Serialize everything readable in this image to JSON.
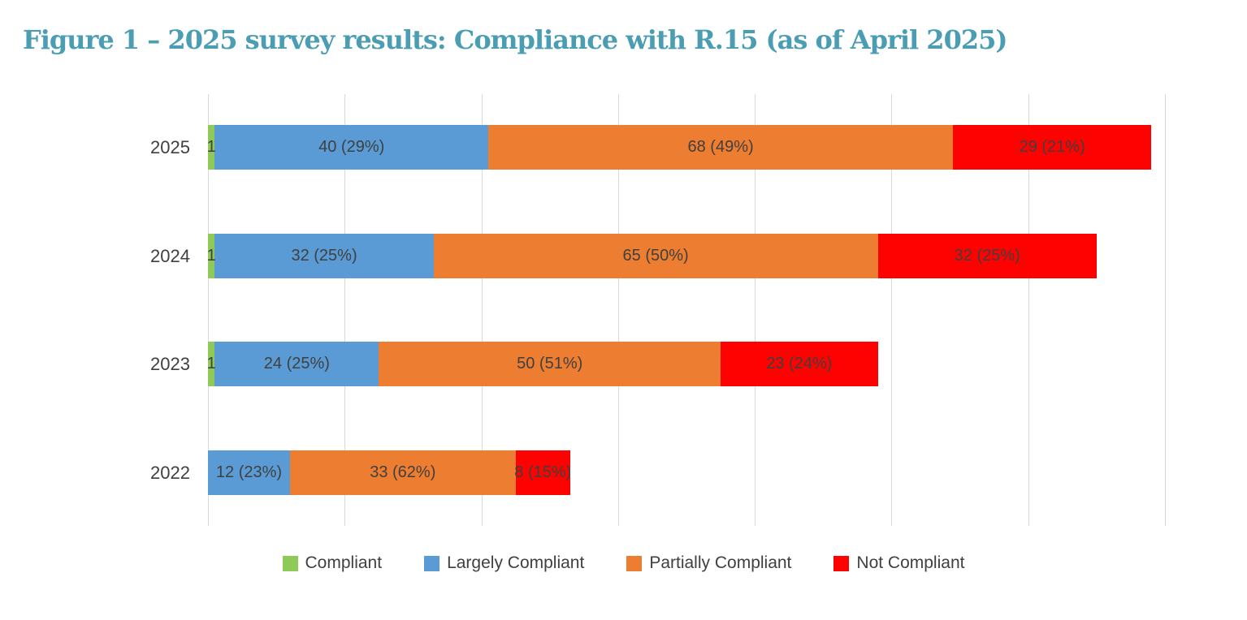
{
  "page": {
    "title": "Figure 1 – 2025 survey results: Compliance with R.15 (as of April 2025)",
    "title_color": "#4A9DB2",
    "background_color": "#FFFFFF"
  },
  "chart_data": {
    "type": "bar",
    "orientation": "horizontal",
    "stacked": true,
    "title": "Figure 1 – 2025 survey results: Compliance with R.15 (as of April 2025)",
    "categories": [
      "2025",
      "2024",
      "2023",
      "2022"
    ],
    "series": [
      {
        "name": "Compliant",
        "color": "#8FC958",
        "values": [
          1,
          1,
          1,
          0
        ],
        "labels": [
          "1",
          "1",
          "1",
          ""
        ]
      },
      {
        "name": "Largely Compliant",
        "color": "#5B9BD5",
        "values": [
          40,
          32,
          24,
          12
        ],
        "labels": [
          "40 (29%)",
          "32 (25%)",
          "24 (25%)",
          "12 (23%)"
        ]
      },
      {
        "name": "Partially Compliant",
        "color": "#ED7D31",
        "values": [
          68,
          65,
          50,
          33
        ],
        "labels": [
          "68 (49%)",
          "65 (50%)",
          "50 (51%)",
          "33 (62%)"
        ]
      },
      {
        "name": "Not Compliant",
        "color": "#FE0101",
        "values": [
          29,
          32,
          23,
          8
        ],
        "labels": [
          "29 (21%)",
          "32 (25%)",
          "23 (24%)",
          "8 (15%)"
        ]
      }
    ],
    "totals": [
      138,
      130,
      98,
      53
    ],
    "xlim": [
      0,
      140
    ],
    "gridline_step": 20,
    "grid": true,
    "x_tick_labels_shown": false,
    "legend_position": "bottom",
    "label_color": "#404040",
    "gridline_color": "#D9D9D9"
  }
}
